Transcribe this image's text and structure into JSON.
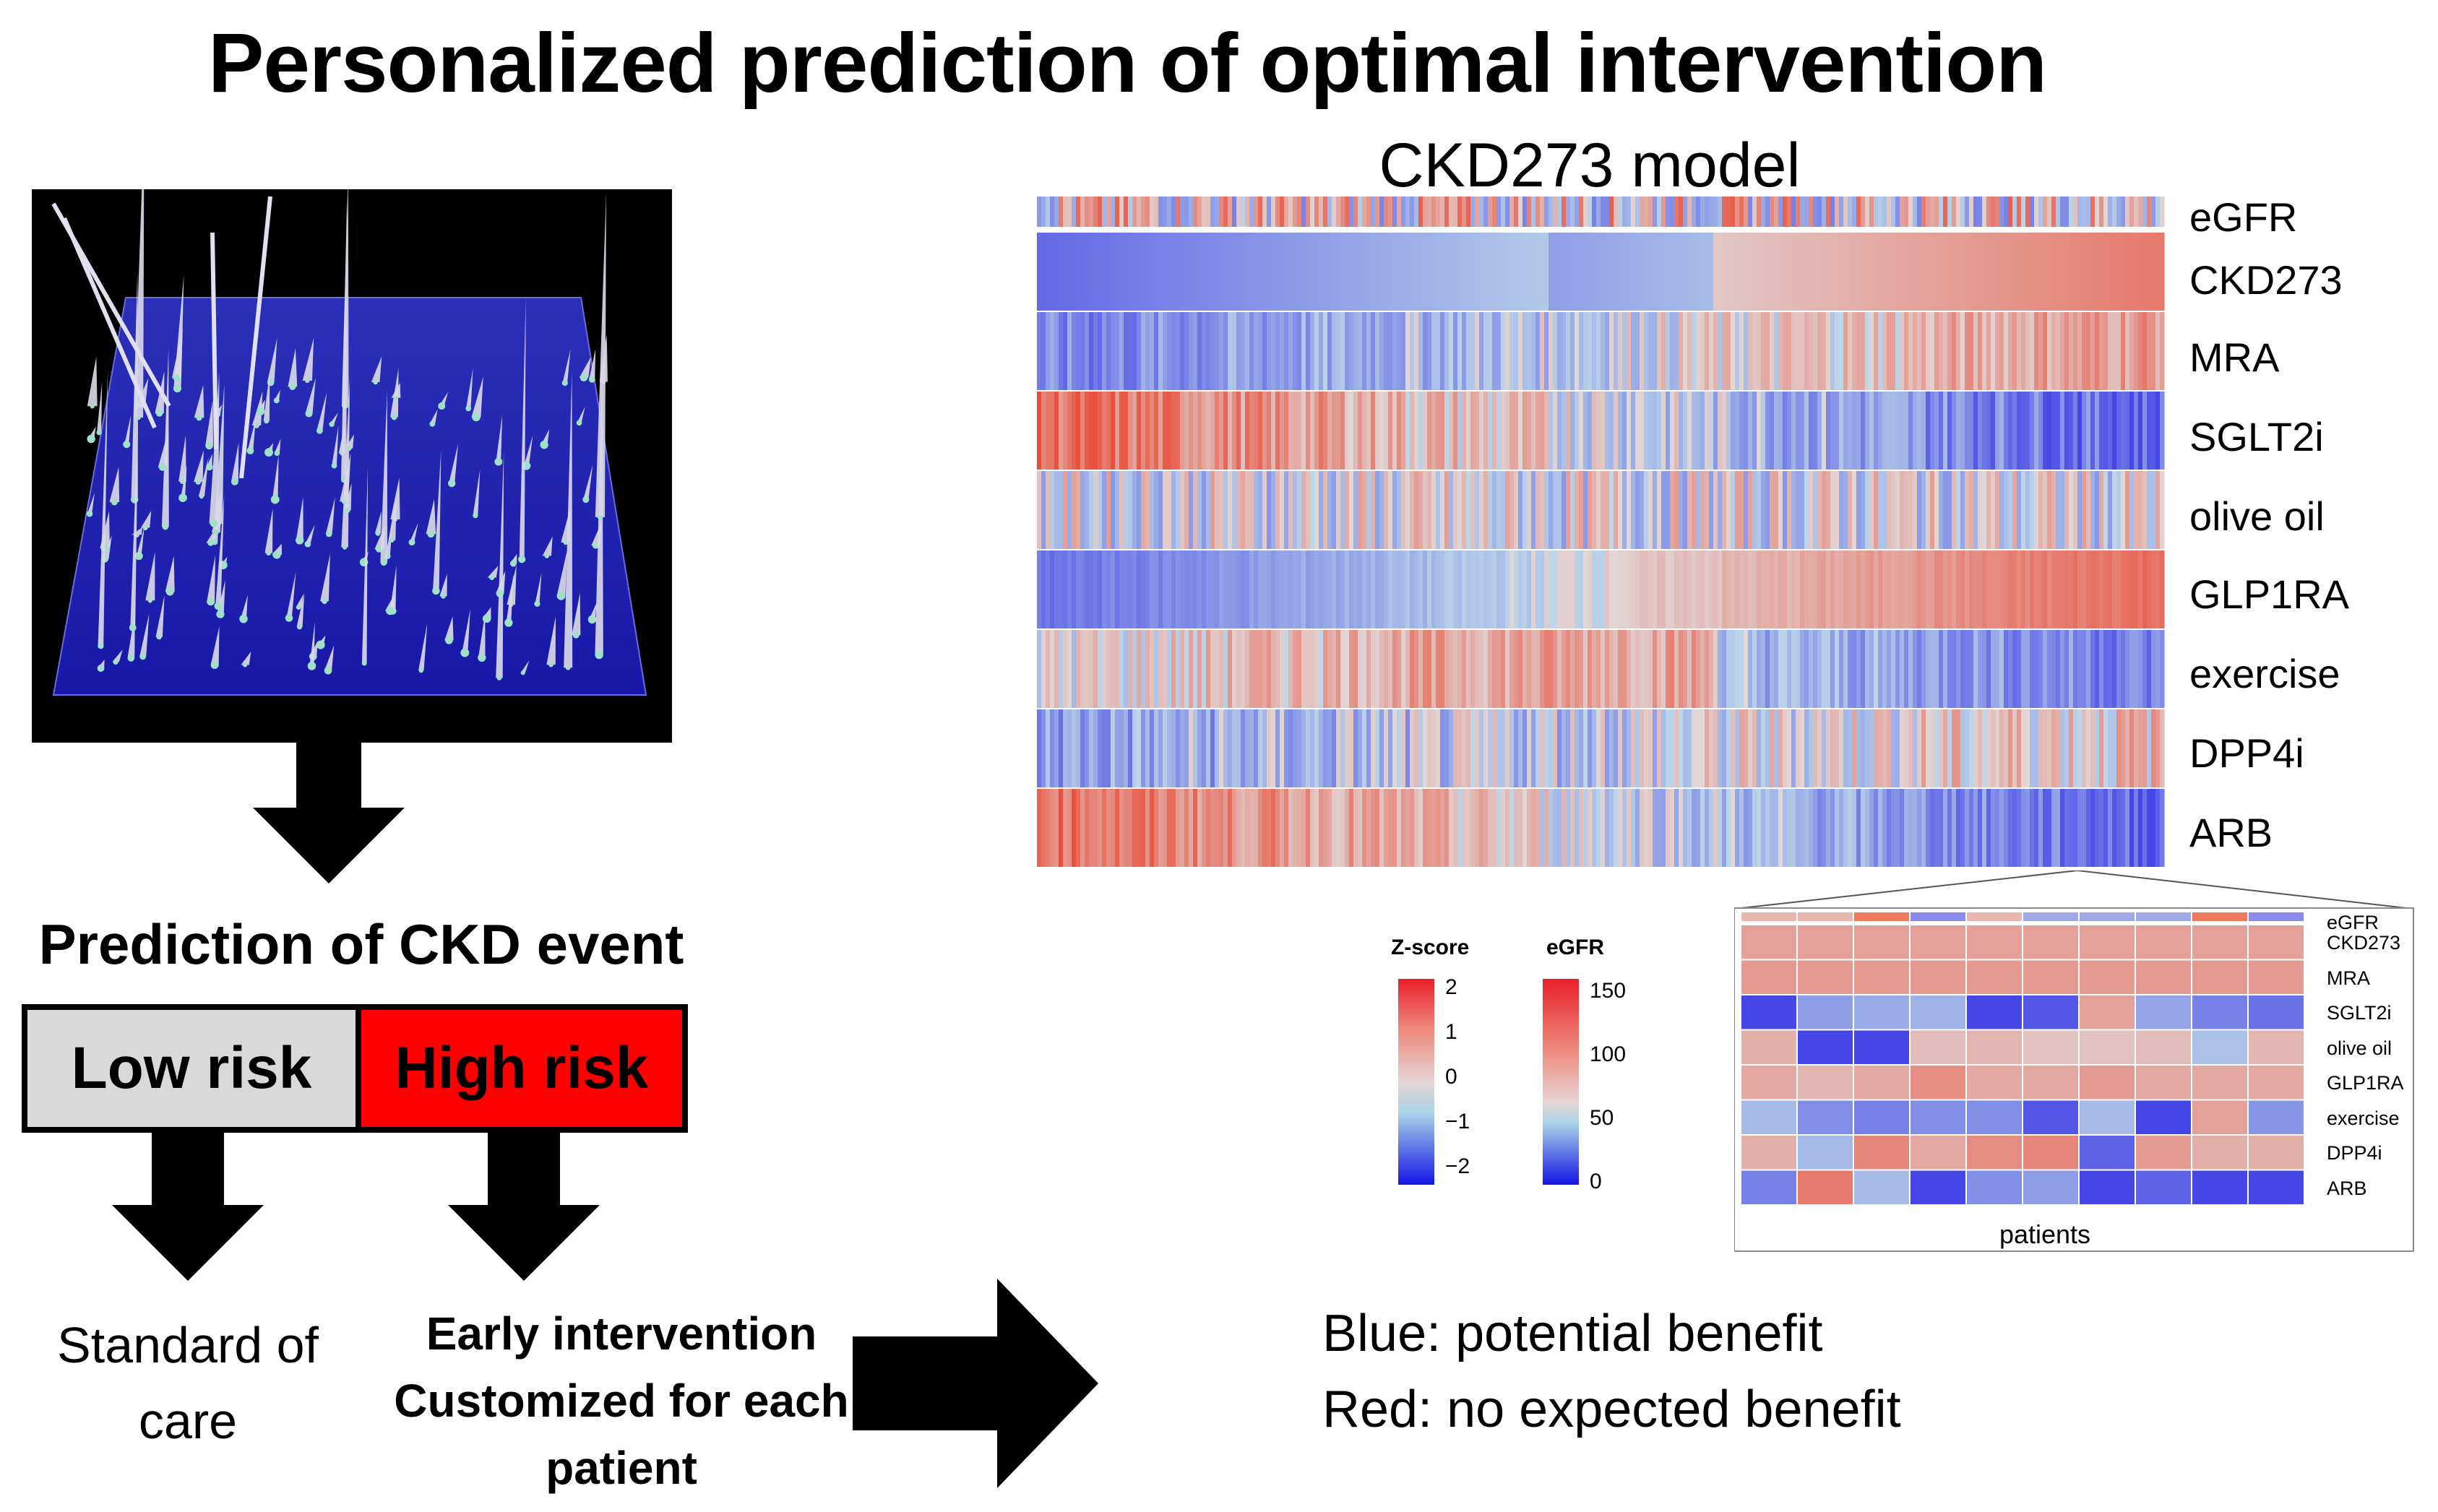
{
  "title": "Personalized prediction of optimal intervention",
  "heatmap": {
    "title": "CKD273 model",
    "rows": [
      "eGFR",
      "CKD273",
      "MRA",
      "SGLT2i",
      "olive oil",
      "GLP1RA",
      "exercise",
      "DPP4i",
      "ARB"
    ]
  },
  "left": {
    "prediction_title": "Prediction of CKD event",
    "low_risk": "Low risk",
    "high_risk": "High risk",
    "standard_care": "Standard of care",
    "early_lines": [
      "Early intervention",
      "Customized for each",
      "patient"
    ]
  },
  "legend": {
    "zscore_title": "Z-score",
    "zscore_ticks": [
      "2",
      "1",
      "0",
      "−1",
      "−2"
    ],
    "egfr_title": "eGFR",
    "egfr_ticks": [
      "150",
      "100",
      "50",
      "0"
    ]
  },
  "inset": {
    "rows": [
      "eGFR",
      "CKD273",
      "MRA",
      "SGLT2i",
      "olive oil",
      "GLP1RA",
      "exercise",
      "DPP4i",
      "ARB"
    ],
    "xlabel": "patients"
  },
  "notes": {
    "blue": "Blue: potential benefit",
    "red": "Red: no expected benefit"
  },
  "colors": {
    "red": "#ee4b3a",
    "blue": "#3f3fe0",
    "light": "#add8e6",
    "risk_high": "#ff0000",
    "risk_low": "#d9d9d9"
  }
}
